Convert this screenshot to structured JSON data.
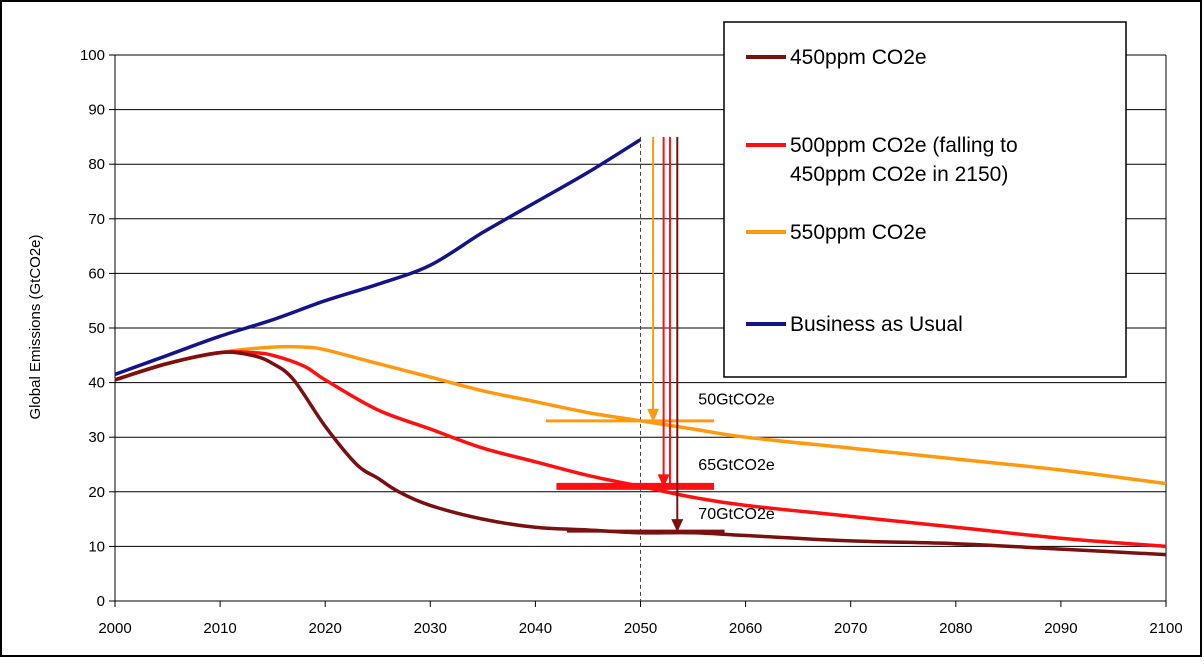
{
  "chart_data": {
    "type": "line",
    "title": "",
    "xlabel": "",
    "ylabel": "Global Emissions (GtCO2e)",
    "xlim": [
      2000,
      2100
    ],
    "ylim": [
      0,
      100
    ],
    "xticks": [
      "2000",
      "2010",
      "2020",
      "2030",
      "2040",
      "2050",
      "2060",
      "2070",
      "2080",
      "2090",
      "2100"
    ],
    "yticks": [
      "0",
      "10",
      "20",
      "30",
      "40",
      "50",
      "60",
      "70",
      "80",
      "90",
      "100"
    ],
    "grid": "horizontal",
    "legend_position": "top-right",
    "legend": [
      {
        "label_lines": [
          "450ppm CO2e"
        ],
        "color": "#7a1010"
      },
      {
        "label_lines": [
          "500ppm CO2e (falling to",
          "450ppm CO2e in 2150)"
        ],
        "color": "#ff1010"
      },
      {
        "label_lines": [
          "550ppm CO2e"
        ],
        "color": "#ff9a10"
      },
      {
        "label_lines": [
          "Business as Usual"
        ],
        "color": "#14148a"
      }
    ],
    "series": [
      {
        "name": "Business as Usual",
        "color": "#14148a",
        "x": [
          2000,
          2005,
          2010,
          2015,
          2020,
          2025,
          2030,
          2035,
          2040,
          2045,
          2050
        ],
        "y": [
          41.5,
          45,
          48.5,
          51.5,
          55,
          58,
          61.5,
          67.5,
          73,
          78.5,
          84.5
        ]
      },
      {
        "name": "550ppm CO2e",
        "color": "#ff9a10",
        "x": [
          2000,
          2005,
          2010,
          2015,
          2018,
          2020,
          2025,
          2030,
          2035,
          2040,
          2045,
          2050,
          2055,
          2060,
          2070,
          2080,
          2090,
          2100
        ],
        "y": [
          40.5,
          43.5,
          45.5,
          46.5,
          46.5,
          46,
          43.5,
          41,
          38.5,
          36.5,
          34.5,
          33,
          31.5,
          30,
          28,
          26,
          24,
          21.5
        ]
      },
      {
        "name": "500ppm CO2e (falling to 450ppm CO2e in 2150)",
        "color": "#ff1010",
        "x": [
          2000,
          2005,
          2010,
          2013,
          2015,
          2018,
          2020,
          2025,
          2030,
          2035,
          2040,
          2045,
          2050,
          2055,
          2060,
          2070,
          2080,
          2090,
          2100
        ],
        "y": [
          40.5,
          43.5,
          45.5,
          45.5,
          45,
          43,
          40.5,
          35,
          31.5,
          28,
          25.5,
          23,
          21,
          19,
          17.5,
          15.5,
          13.5,
          11.5,
          10
        ]
      },
      {
        "name": "450ppm CO2e",
        "color": "#7a1010",
        "x": [
          2000,
          2005,
          2010,
          2013,
          2015,
          2017,
          2020,
          2023,
          2025,
          2027,
          2030,
          2035,
          2040,
          2045,
          2050,
          2055,
          2060,
          2070,
          2080,
          2090,
          2100
        ],
        "y": [
          40.5,
          43.5,
          45.5,
          45,
          43.5,
          40.5,
          32,
          25,
          22.5,
          20,
          17.5,
          15,
          13.5,
          13,
          12.5,
          12.5,
          12,
          11,
          10.5,
          9.5,
          8.5
        ]
      }
    ],
    "reference_line": {
      "x": 2050,
      "style": "dashed"
    },
    "bars": [
      {
        "color": "#ff9a10",
        "x": [
          2041,
          2057
        ],
        "y": 33,
        "weight": "thin"
      },
      {
        "color": "#ff1010",
        "x": [
          2042,
          2057
        ],
        "y": 21,
        "weight": "thick"
      },
      {
        "color": "#7a1010",
        "x": [
          2043,
          2058
        ],
        "y": 12.8,
        "weight": "thin"
      }
    ],
    "arrows": [
      {
        "color": "#ff9a10",
        "x": 2051.2,
        "y_from": 85,
        "y_to": 33
      },
      {
        "color": "#ff1010",
        "x": 2052.2,
        "y_from": 85,
        "y_to": 21
      },
      {
        "color": "#ff1010",
        "x": 2052.8,
        "y_from": 85,
        "y_to": 21,
        "head": false
      },
      {
        "color": "#7a1010",
        "x": 2053.5,
        "y_from": 85,
        "y_to": 12.8
      }
    ],
    "annotations": [
      {
        "text": "50GtCO2e",
        "x": 2055.5,
        "y": 36
      },
      {
        "text": "65GtCO2e",
        "x": 2055.5,
        "y": 24
      },
      {
        "text": "70GtCO2e",
        "x": 2055.5,
        "y": 15
      }
    ]
  }
}
